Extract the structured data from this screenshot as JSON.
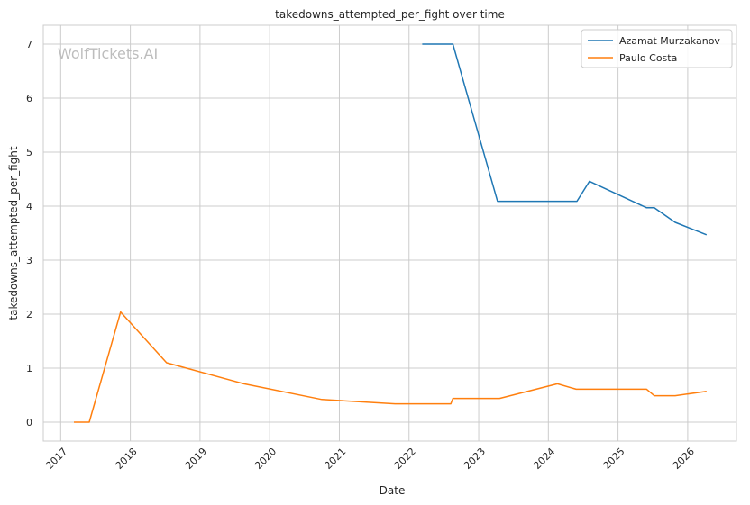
{
  "chart_data": {
    "type": "line",
    "title": "takedowns_attempted_per_fight over time",
    "xlabel": "Date",
    "ylabel": "takedowns_attempted_per_fight",
    "watermark": "WolfTickets.AI",
    "xlim": [
      2016.75,
      2026.7
    ],
    "ylim": [
      -0.35,
      7.35
    ],
    "x_ticks": [
      2017,
      2018,
      2019,
      2020,
      2021,
      2022,
      2023,
      2024,
      2025,
      2026
    ],
    "y_ticks": [
      0,
      1,
      2,
      3,
      4,
      5,
      6,
      7
    ],
    "grid": true,
    "legend_position": "top-right",
    "series": [
      {
        "name": "Azamat Murzakanov",
        "color": "#1f77b4",
        "x": [
          2022.19,
          2022.63,
          2023.27,
          2024.41,
          2024.59,
          2025.41,
          2025.52,
          2025.82,
          2026.27
        ],
        "y": [
          7.0,
          7.0,
          4.09,
          4.09,
          4.46,
          3.97,
          3.97,
          3.7,
          3.47
        ]
      },
      {
        "name": "Paulo Costa",
        "color": "#ff7f0e",
        "x": [
          2017.19,
          2017.41,
          2017.86,
          2018.52,
          2019.63,
          2020.75,
          2021.8,
          2022.6,
          2022.63,
          2023.3,
          2024.13,
          2024.4,
          2025.41,
          2025.52,
          2025.82,
          2026.27
        ],
        "y": [
          0.0,
          0.0,
          2.04,
          1.1,
          0.71,
          0.42,
          0.34,
          0.34,
          0.44,
          0.44,
          0.71,
          0.61,
          0.61,
          0.49,
          0.49,
          0.57
        ]
      }
    ]
  }
}
